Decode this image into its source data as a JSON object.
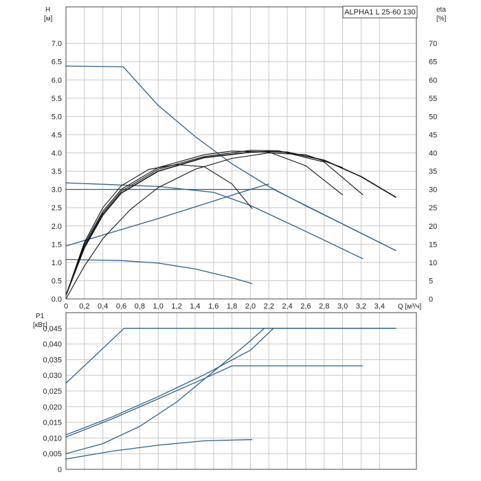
{
  "product_label": "ALPHA1 L 25-60 130",
  "chart_data": [
    {
      "type": "line",
      "title": "",
      "left_axis_label": [
        "H",
        "[м]"
      ],
      "right_axis_label": [
        "eta",
        "[%]"
      ],
      "x_axis_label": "Q [м³/ч]",
      "xlim": [
        0,
        3.8
      ],
      "ylim": [
        0,
        8
      ],
      "y2lim": [
        0,
        80
      ],
      "x_ticks": [
        "0",
        "0,2",
        "0,4",
        "0,6",
        "0,8",
        "1,0",
        "1,2",
        "1,4",
        "1,6",
        "1,8",
        "2,0",
        "2,2",
        "2,4",
        "2,6",
        "2,8",
        "3,0",
        "3,2",
        "3,4"
      ],
      "y_ticks": [
        "0.0",
        "0.5",
        "1.0",
        "1.5",
        "2.0",
        "2.5",
        "3.0",
        "3.5",
        "4.0",
        "4.5",
        "5.0",
        "5.5",
        "6.0",
        "6.5",
        "7.0"
      ],
      "y2_ticks": [
        "0",
        "5",
        "10",
        "15",
        "20",
        "25",
        "30",
        "35",
        "40",
        "45",
        "50",
        "55",
        "60",
        "65",
        "70"
      ],
      "grid": true,
      "head_curves": [
        {
          "x": [
            0,
            0.62,
            1.0,
            1.4,
            1.8,
            2.2,
            2.6,
            3.0,
            3.4,
            3.58
          ],
          "y": [
            6.38,
            6.36,
            5.3,
            4.45,
            3.7,
            3.08,
            2.55,
            2.05,
            1.55,
            1.32
          ]
        },
        {
          "x": [
            0,
            2.25,
            3.58
          ],
          "y": [
            3.0,
            3.0,
            1.32
          ]
        },
        {
          "x": [
            0,
            1.0,
            1.6,
            2.0,
            2.6,
            3.22
          ],
          "y": [
            3.18,
            3.08,
            2.92,
            2.56,
            1.85,
            1.1
          ]
        },
        {
          "x": [
            0,
            1.0,
            1.6,
            2.0,
            2.2
          ],
          "y": [
            1.45,
            2.2,
            2.68,
            3.0,
            3.15
          ]
        },
        {
          "x": [
            0,
            0.6,
            1.0,
            1.4,
            1.8,
            2.02
          ],
          "y": [
            1.08,
            1.05,
            0.98,
            0.82,
            0.58,
            0.42
          ]
        }
      ],
      "efficiency_curves": [
        {
          "x": [
            0,
            0.2,
            0.4,
            0.6,
            1.0,
            1.5,
            2.0,
            2.2,
            2.4,
            2.8,
            3.2,
            3.58
          ],
          "y": [
            1,
            14,
            23,
            29,
            35,
            38.7,
            40.2,
            40.4,
            40.2,
            38,
            33.5,
            27.8
          ]
        },
        {
          "x": [
            0,
            0.2,
            0.4,
            0.6,
            1.0,
            1.5,
            2.0,
            2.3,
            2.8,
            3.22
          ],
          "y": [
            1,
            14.5,
            23.5,
            29.5,
            35.5,
            39,
            40.7,
            40.6,
            37.5,
            28.5
          ]
        },
        {
          "x": [
            0,
            0.2,
            0.4,
            0.6,
            1.0,
            1.5,
            1.8,
            2.2,
            2.6,
            3.0
          ],
          "y": [
            1,
            15,
            24,
            30,
            36,
            39.5,
            40.5,
            40.2,
            36.5,
            28.5
          ]
        },
        {
          "x": [
            0,
            0.2,
            0.4,
            0.6,
            0.9,
            1.2,
            1.5,
            1.8,
            2.02
          ],
          "y": [
            1,
            15.5,
            25,
            31,
            35.5,
            36.8,
            36.2,
            31.5,
            24.7
          ]
        },
        {
          "x": [
            0,
            0.2,
            0.4,
            0.7,
            1.0,
            1.4,
            1.8,
            2.2,
            2.6,
            3.0
          ],
          "y": [
            0,
            9,
            16.5,
            24.5,
            30.5,
            35.5,
            38.5,
            40,
            39.5,
            36
          ]
        }
      ]
    },
    {
      "type": "line",
      "title": "",
      "left_axis_label": [
        "P1",
        "[кВт]"
      ],
      "xlim": [
        0,
        3.8
      ],
      "ylim": [
        0,
        0.05
      ],
      "y_ticks": [
        "0",
        "0,005",
        "0,010",
        "0,015",
        "0,020",
        "0,025",
        "0,030",
        "0,035",
        "0,040",
        "0,045"
      ],
      "grid": true,
      "power_curves": [
        {
          "x": [
            0,
            0.63,
            3.58
          ],
          "y": [
            0.0275,
            0.045,
            0.045
          ]
        },
        {
          "x": [
            0,
            0.5,
            1.0,
            1.5,
            2.0,
            2.25,
            3.58
          ],
          "y": [
            0.011,
            0.0167,
            0.0232,
            0.0302,
            0.038,
            0.045,
            0.045
          ]
        },
        {
          "x": [
            0,
            0.5,
            1.0,
            1.5,
            1.8,
            3.22
          ],
          "y": [
            0.0103,
            0.0161,
            0.0225,
            0.029,
            0.033,
            0.033
          ]
        },
        {
          "x": [
            0,
            0.4,
            0.8,
            1.2,
            1.6,
            2.0,
            2.15,
            3.58
          ],
          "y": [
            0.005,
            0.0082,
            0.0137,
            0.0215,
            0.0312,
            0.041,
            0.045,
            0.045
          ]
        },
        {
          "x": [
            0,
            0.5,
            1.0,
            1.5,
            2.02
          ],
          "y": [
            0.0033,
            0.0058,
            0.0077,
            0.0091,
            0.0095
          ]
        }
      ]
    }
  ]
}
